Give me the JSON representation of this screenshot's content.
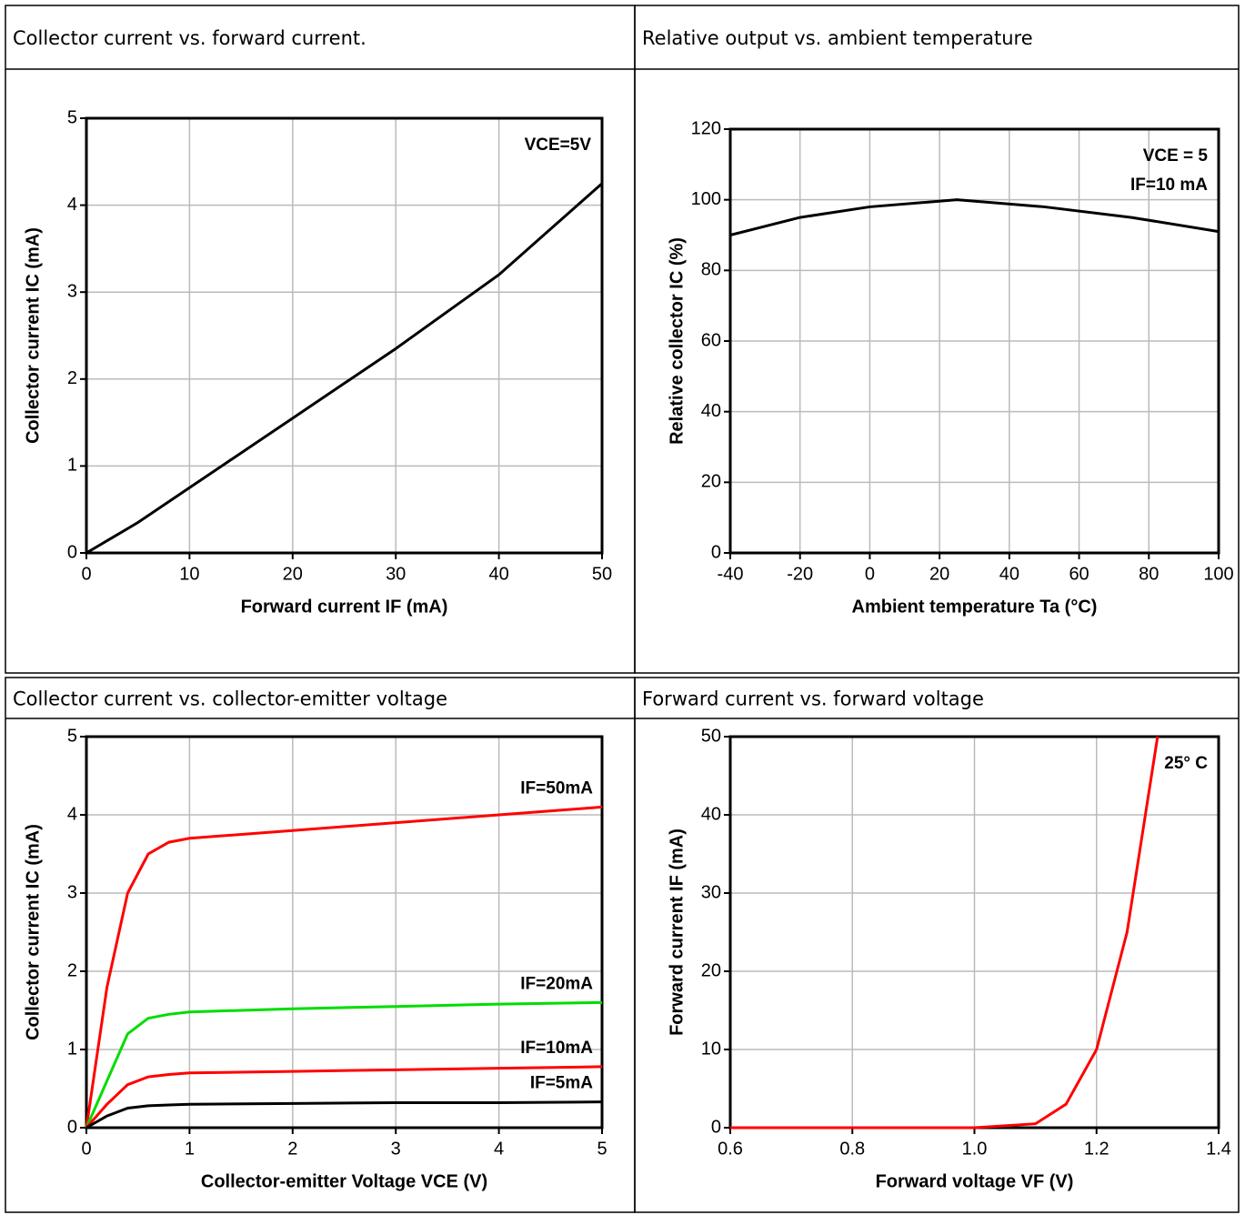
{
  "chart_data": [
    {
      "type": "line",
      "title": "Collector current vs. forward current.",
      "x_label": "Forward current IF (mA)",
      "y_label": "Collector current IC (mA)",
      "annotations": [
        "VCE=5V"
      ],
      "xlim": [
        0,
        50
      ],
      "xticks": [
        0,
        10,
        20,
        30,
        40,
        50
      ],
      "ylim": [
        0,
        5
      ],
      "yticks": [
        0,
        1,
        2,
        3,
        4,
        5
      ],
      "grid": true,
      "series": [
        {
          "color": "#000000",
          "x": [
            0,
            5,
            10,
            20,
            30,
            40,
            50
          ],
          "values": [
            0,
            0.35,
            0.75,
            1.55,
            2.35,
            3.2,
            4.25
          ]
        }
      ]
    },
    {
      "type": "line",
      "title": "Relative output vs. ambient temperature",
      "x_label": "Ambient temperature Ta (°C)",
      "y_label": "Relative collector IC (%)",
      "annotations": [
        "VCE = 5",
        "IF=10 mA"
      ],
      "xlim": [
        -40,
        100
      ],
      "xticks": [
        -40,
        -20,
        0,
        20,
        40,
        60,
        80,
        100
      ],
      "ylim": [
        0,
        120
      ],
      "yticks": [
        0,
        20,
        40,
        60,
        80,
        100,
        120
      ],
      "grid": true,
      "series": [
        {
          "color": "#000000",
          "x": [
            -40,
            -20,
            0,
            25,
            50,
            75,
            100
          ],
          "values": [
            90,
            95,
            98,
            100,
            98,
            95,
            91
          ]
        }
      ]
    },
    {
      "type": "line",
      "title": "Collector current vs. collector-emitter voltage",
      "x_label": "Collector-emitter Voltage VCE (V)",
      "y_label": "Collector current IC (mA)",
      "annotations": [],
      "xlim": [
        0,
        5
      ],
      "xticks": [
        0,
        1,
        2,
        3,
        4,
        5
      ],
      "ylim": [
        0,
        5
      ],
      "yticks": [
        0,
        1,
        2,
        3,
        4,
        5
      ],
      "grid": true,
      "series": [
        {
          "name": "IF=50mA",
          "color": "#ff0000",
          "x": [
            0,
            0.2,
            0.4,
            0.6,
            0.8,
            1,
            2,
            3,
            4,
            5
          ],
          "values": [
            0,
            1.8,
            3.0,
            3.5,
            3.65,
            3.7,
            3.8,
            3.9,
            4.0,
            4.1
          ]
        },
        {
          "name": "IF=20mA",
          "color": "#00dd00",
          "x": [
            0,
            0.2,
            0.4,
            0.6,
            0.8,
            1,
            2,
            3,
            4,
            5
          ],
          "values": [
            0,
            0.6,
            1.2,
            1.4,
            1.45,
            1.48,
            1.52,
            1.55,
            1.58,
            1.6
          ]
        },
        {
          "name": "IF=10mA",
          "color": "#ff0000",
          "x": [
            0,
            0.2,
            0.4,
            0.6,
            0.8,
            1,
            2,
            3,
            4,
            5
          ],
          "values": [
            0,
            0.3,
            0.55,
            0.65,
            0.68,
            0.7,
            0.72,
            0.74,
            0.76,
            0.78
          ]
        },
        {
          "name": "IF=5mA",
          "color": "#000000",
          "x": [
            0,
            0.2,
            0.4,
            0.6,
            0.8,
            1,
            2,
            3,
            4,
            5
          ],
          "values": [
            0,
            0.15,
            0.25,
            0.28,
            0.29,
            0.3,
            0.31,
            0.32,
            0.32,
            0.33
          ]
        }
      ]
    },
    {
      "type": "line",
      "title": "Forward current vs. forward voltage",
      "x_label": "Forward voltage VF (V)",
      "y_label": "Forward current IF (mA)",
      "annotations": [
        "25° C"
      ],
      "xlim": [
        0.6,
        1.4
      ],
      "xticks": [
        0.6,
        0.8,
        {
          "value": 1.0,
          "label": "1.0"
        },
        1.2,
        1.4
      ],
      "ylim": [
        0,
        50
      ],
      "yticks": [
        0,
        10,
        20,
        30,
        40,
        50
      ],
      "grid": true,
      "series": [
        {
          "color": "#ff0000",
          "x": [
            0.6,
            0.9,
            1.0,
            1.1,
            1.15,
            1.2,
            1.25,
            1.3
          ],
          "values": [
            0,
            0,
            0,
            0.5,
            3,
            10,
            25,
            50
          ]
        }
      ]
    }
  ]
}
